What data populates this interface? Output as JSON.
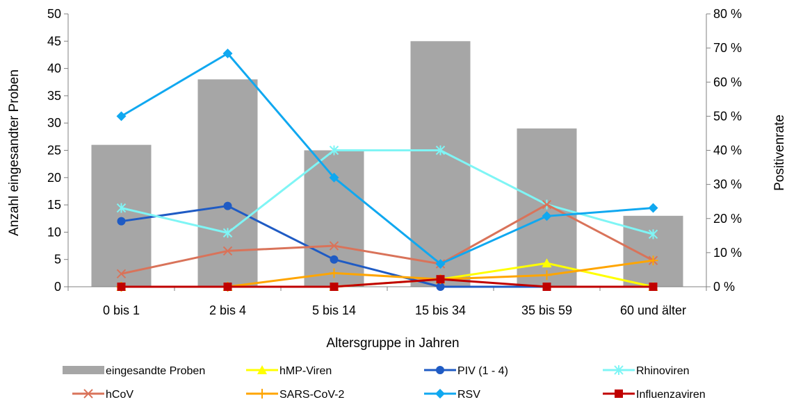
{
  "chart_data": {
    "type": "bar",
    "categories": [
      "0 bis 1",
      "2 bis 4",
      "5 bis 14",
      "15 bis 34",
      "35 bis 59",
      "60 und älter"
    ],
    "xlabel": "Altersgruppe in Jahren",
    "ylabel": "Anzahl eingesandter Proben",
    "y2label": "Positivenrate",
    "ylim": [
      0,
      50
    ],
    "y2lim": [
      0,
      80
    ],
    "yticks": [
      "0",
      "5",
      "10",
      "15",
      "20",
      "25",
      "30",
      "35",
      "40",
      "45",
      "50"
    ],
    "y2ticks": [
      "0 %",
      "10 %",
      "20 %",
      "30 %",
      "40 %",
      "50 %",
      "60 %",
      "70 %",
      "80 %"
    ],
    "grid": false,
    "legend_position": "bottom",
    "bars": {
      "name": "eingesandte Proben",
      "color": "#a6a6a6",
      "values": [
        26,
        38,
        25,
        45,
        29,
        13
      ]
    },
    "series": [
      {
        "name": "hMP-Viren",
        "axis": "right",
        "color": "#ffff00",
        "marker": "triangle",
        "values": [
          0,
          0,
          0,
          2.2,
          6.9,
          0
        ]
      },
      {
        "name": "PIV (1 - 4)",
        "axis": "right",
        "color": "#1f5bc4",
        "marker": "circle",
        "values": [
          19.2,
          23.7,
          8,
          0,
          0,
          0
        ]
      },
      {
        "name": "Rhinoviren",
        "axis": "right",
        "color": "#7ff5f5",
        "marker": "star",
        "values": [
          23.1,
          15.8,
          40,
          40,
          24.1,
          15.4
        ]
      },
      {
        "name": "hCoV",
        "axis": "right",
        "color": "#d9735a",
        "marker": "x",
        "values": [
          3.8,
          10.5,
          12,
          6.7,
          24.1,
          7.7
        ]
      },
      {
        "name": "SARS-CoV-2",
        "axis": "right",
        "color": "#ffa500",
        "marker": "plus",
        "values": [
          0,
          0,
          4,
          2.2,
          3.4,
          7.7
        ]
      },
      {
        "name": "RSV",
        "axis": "right",
        "color": "#10a8f0",
        "marker": "diamond",
        "values": [
          50,
          68.4,
          32,
          6.7,
          20.7,
          23.1
        ]
      },
      {
        "name": "Influenzaviren",
        "axis": "right",
        "color": "#c00000",
        "marker": "square",
        "values": [
          0,
          0,
          0,
          2.2,
          0,
          0
        ]
      }
    ]
  }
}
